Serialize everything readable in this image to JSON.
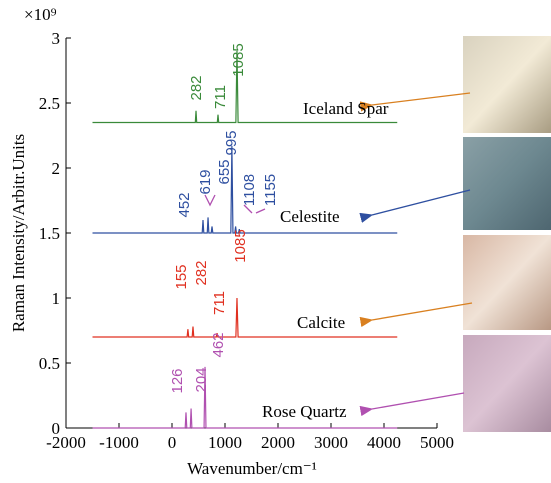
{
  "chart_data": {
    "type": "line",
    "scale_label": "×10⁹",
    "ylabel": "Raman Intensity/Arbitr.Units",
    "xlabel": "Wavenumber/cm⁻¹",
    "xlim": [
      -2000,
      5000
    ],
    "xticks": [
      -2000,
      -1000,
      0,
      1000,
      2000,
      3000,
      4000,
      5000
    ],
    "ylim": [
      0,
      3
    ],
    "yticks": [
      0,
      0.5,
      1,
      1.5,
      2,
      2.5,
      3
    ],
    "grid": false,
    "series": [
      {
        "name": "Iceland Spar",
        "color": "#3a8a3a",
        "x": [
          -1500,
          440,
          453,
          466,
          855,
          868,
          881,
          1205,
          1226,
          1247,
          4250
        ],
        "values": [
          2.35,
          2.35,
          2.44,
          2.35,
          2.35,
          2.41,
          2.35,
          2.35,
          2.9,
          2.35,
          2.35
        ],
        "peak_labels": [
          282,
          711,
          1085
        ]
      },
      {
        "name": "Celestite",
        "color": "#2e4fa0",
        "x": [
          -1500,
          570,
          585,
          600,
          665,
          680,
          695,
          740,
          755,
          770,
          1110,
          1130,
          1150,
          1185,
          1200,
          1215,
          1255,
          1270,
          1285,
          4250
        ],
        "values": [
          1.5,
          1.5,
          1.6,
          1.5,
          1.5,
          1.62,
          1.5,
          1.5,
          1.55,
          1.5,
          1.5,
          2.17,
          1.5,
          1.5,
          1.55,
          1.5,
          1.5,
          1.53,
          1.5,
          1.5
        ],
        "peak_labels": [
          452,
          619,
          655,
          995,
          1108,
          1155
        ]
      },
      {
        "name": "Calcite",
        "color": "#e03020",
        "x": [
          -1500,
          285,
          300,
          315,
          381,
          396,
          411,
          835,
          850,
          865,
          1205,
          1226,
          1247,
          4250
        ],
        "values": [
          0.7,
          0.7,
          0.76,
          0.7,
          0.7,
          0.78,
          0.7,
          0.7,
          0.73,
          0.7,
          0.7,
          1.0,
          0.7,
          0.7
        ],
        "peak_labels": [
          155,
          282,
          711,
          1085
        ]
      },
      {
        "name": "Rose Quartz",
        "color": "#b050b0",
        "x": [
          -1500,
          249,
          264,
          279,
          345,
          360,
          375,
          605,
          623,
          641,
          4250
        ],
        "values": [
          0,
          0,
          0.12,
          0,
          0,
          0.15,
          0,
          0,
          0.47,
          0,
          0
        ],
        "peak_labels": [
          126,
          204,
          462
        ]
      }
    ]
  }
}
